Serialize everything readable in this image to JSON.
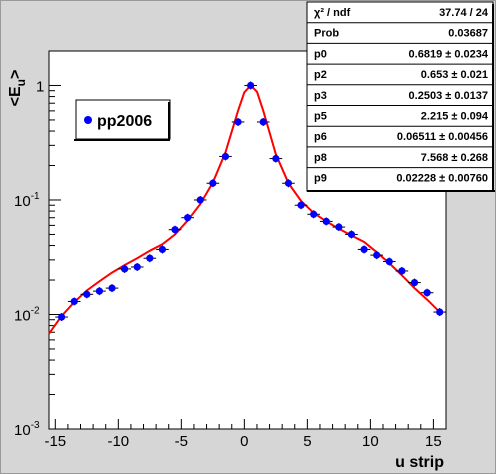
{
  "chart_data": {
    "type": "scatter",
    "xlabel": "u strip",
    "ylabel": "<E_u>",
    "xlim": [
      -15.5,
      16
    ],
    "ylim": [
      0.001,
      2
    ],
    "yscale": "log",
    "x_ticks": [
      -15,
      -10,
      -5,
      0,
      5,
      10,
      15
    ],
    "y_ticks": [
      {
        "value": 0.001,
        "base": "10",
        "exp": "-3"
      },
      {
        "value": 0.01,
        "base": "10",
        "exp": "-2"
      },
      {
        "value": 0.1,
        "base": "10",
        "exp": "-1"
      },
      {
        "value": 1,
        "base": "1",
        "exp": ""
      }
    ],
    "legend": {
      "label": "pp2006",
      "position": "top-left"
    },
    "series": [
      {
        "name": "pp2006",
        "kind": "points",
        "color": "#0000ff",
        "x": [
          -14.5,
          -13.5,
          -12.5,
          -11.5,
          -10.5,
          -9.5,
          -8.5,
          -7.5,
          -6.5,
          -5.5,
          -4.5,
          -3.5,
          -2.5,
          -1.5,
          -0.5,
          0.5,
          1.5,
          2.5,
          3.5,
          4.5,
          5.5,
          6.5,
          7.5,
          8.5,
          9.5,
          10.5,
          11.5,
          12.5,
          13.5,
          14.5,
          15.5
        ],
        "y": [
          0.0095,
          0.013,
          0.015,
          0.016,
          0.017,
          0.025,
          0.026,
          0.031,
          0.037,
          0.055,
          0.07,
          0.1,
          0.14,
          0.24,
          0.48,
          1.0,
          0.48,
          0.23,
          0.14,
          0.09,
          0.075,
          0.065,
          0.058,
          0.05,
          0.037,
          0.033,
          0.029,
          0.024,
          0.019,
          0.0155,
          0.0105
        ]
      },
      {
        "name": "fit",
        "kind": "line",
        "color": "#ff0000",
        "x": [
          -15.5,
          -14.5,
          -13.5,
          -12.5,
          -11.5,
          -10.5,
          -9.5,
          -8.5,
          -7.5,
          -6.5,
          -5.5,
          -4.5,
          -3.5,
          -2.5,
          -1.5,
          -0.5,
          0,
          0.5,
          1.0,
          1.5,
          2.5,
          3.5,
          4.5,
          5.5,
          6.5,
          7.5,
          8.5,
          9.5,
          10.5,
          11.5,
          12.5,
          13.5,
          14.5,
          15.5
        ],
        "y": [
          0.0068,
          0.0097,
          0.0128,
          0.0162,
          0.0195,
          0.0232,
          0.027,
          0.031,
          0.036,
          0.041,
          0.05,
          0.066,
          0.092,
          0.142,
          0.26,
          0.6,
          0.87,
          1.0,
          0.88,
          0.6,
          0.25,
          0.14,
          0.098,
          0.077,
          0.065,
          0.056,
          0.049,
          0.043,
          0.035,
          0.028,
          0.022,
          0.017,
          0.0135,
          0.0105
        ]
      }
    ],
    "stats": [
      {
        "label": "χ² / ndf",
        "value": "37.74 / 24"
      },
      {
        "label": "Prob",
        "value": "0.03687"
      },
      {
        "label": "p0",
        "value": "0.6819 ± 0.0234"
      },
      {
        "label": "p2",
        "value": "0.653 ± 0.021"
      },
      {
        "label": "p3",
        "value": "0.2503 ± 0.0137"
      },
      {
        "label": "p5",
        "value": "2.215 ± 0.094"
      },
      {
        "label": "p6",
        "value": "0.06511 ± 0.00456"
      },
      {
        "label": "p8",
        "value": "7.568 ± 0.268"
      },
      {
        "label": "p9",
        "value": "0.02228 ± 0.00760"
      }
    ]
  }
}
